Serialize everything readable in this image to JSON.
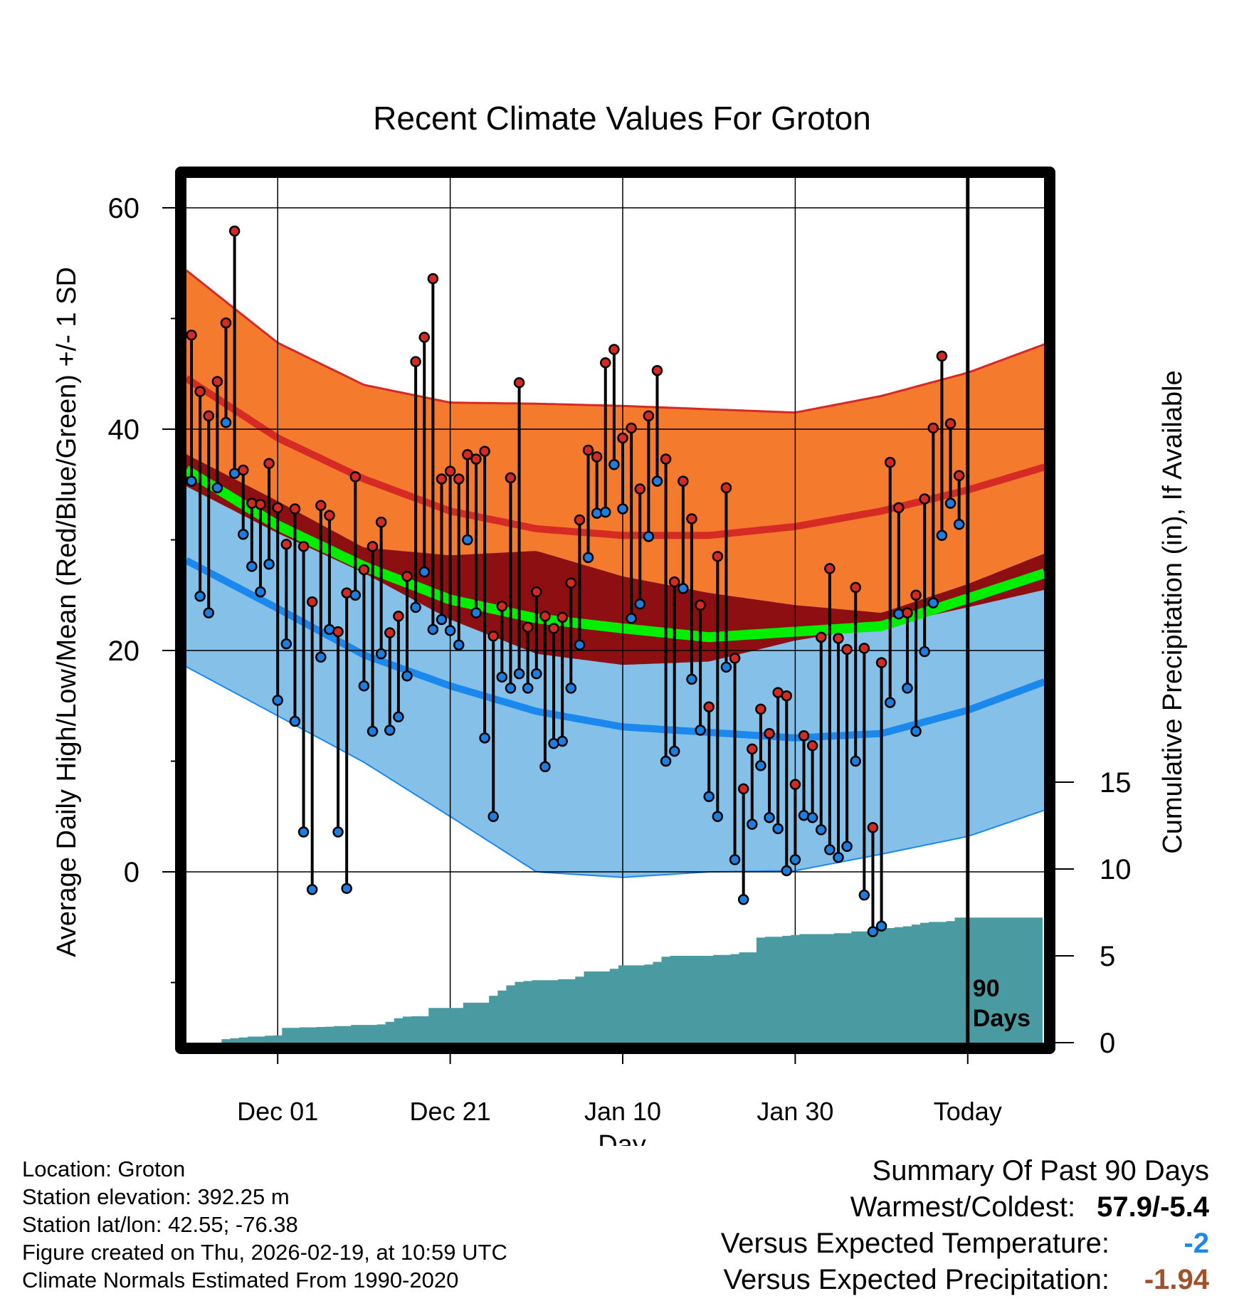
{
  "chart_data": {
    "type": "line",
    "title": "Recent Climate Values For Groton",
    "xlabel": "Day",
    "ylabel": "Average Daily High/Low/Mean (Red/Blue/Green) +/- 1 SD",
    "y2label": "Cumulative Precipitation (in), If Available",
    "ylim": [
      -15,
      65
    ],
    "y2lim": [
      0,
      30
    ],
    "x_ticks": [
      {
        "day": 10,
        "label": "Dec 01"
      },
      {
        "day": 30,
        "label": "Dec 21"
      },
      {
        "day": 50,
        "label": "Jan 10"
      },
      {
        "day": 70,
        "label": "Jan 30"
      },
      {
        "day": 90,
        "label": "Today"
      }
    ],
    "y_ticks": [
      "0",
      "20",
      "40",
      "60"
    ],
    "y2_ticks": [
      "0",
      "5",
      "10",
      "15"
    ],
    "window_label": [
      "90",
      "Days"
    ],
    "colors": {
      "high_band": "#f47a2d",
      "high_mean": "#d62a25",
      "low_band": "#84c0e8",
      "low_mean": "#1b88ee",
      "mean_band": "#8e0f12",
      "mean_line": "#00ee00",
      "precip": "#4a9aa2",
      "high_dot": "#d42a23",
      "low_dot": "#1c7fe0"
    },
    "normals": {
      "days": [
        -1,
        10,
        20,
        30,
        40,
        50,
        60,
        70,
        80,
        90,
        99
      ],
      "high_mean": [
        44.8,
        39.2,
        35.5,
        32.6,
        31.0,
        30.4,
        30.4,
        31.2,
        32.6,
        34.5,
        36.6
      ],
      "high_sd": [
        9.8,
        8.6,
        8.5,
        9.8,
        11.3,
        11.7,
        11.4,
        10.3,
        10.4,
        10.6,
        11.1
      ],
      "low_mean": [
        28.3,
        23.8,
        19.6,
        16.8,
        14.5,
        13.1,
        12.6,
        12.1,
        12.5,
        14.6,
        17.2
      ],
      "low_sd": [
        9.6,
        9.7,
        9.7,
        11.8,
        14.5,
        13.6,
        12.6,
        12.0,
        10.9,
        11.4,
        11.6
      ],
      "mean": [
        36.5,
        31.3,
        27.6,
        24.6,
        22.9,
        22.0,
        21.2,
        21.7,
        22.2,
        24.7,
        27.0
      ]
    },
    "series": [
      {
        "name": "Daily High",
        "values": [
          48.5,
          43.4,
          41.2,
          44.3,
          49.6,
          57.9,
          36.3,
          33.3,
          33.2,
          36.9,
          32.9,
          29.6,
          32.8,
          29.4,
          24.4,
          33.1,
          32.2,
          21.7,
          25.2,
          35.7,
          27.3,
          29.4,
          31.6,
          21.6,
          23.1,
          26.7,
          46.1,
          48.3,
          53.6,
          35.5,
          36.2,
          35.5,
          37.7,
          37.3,
          38.0,
          21.3,
          24.0,
          35.6,
          44.2,
          22.1,
          25.3,
          23.1,
          22.0,
          23.0,
          26.1,
          31.8,
          38.1,
          37.5,
          46.0,
          47.2,
          39.2,
          40.1,
          34.6,
          41.2,
          45.3,
          37.3,
          26.2,
          35.3,
          31.9,
          24.1,
          14.9,
          28.5,
          34.7,
          19.3,
          7.5,
          11.1,
          14.7,
          12.5,
          16.2,
          15.9,
          7.9,
          12.3,
          11.4,
          21.2,
          27.4,
          21.1,
          20.1,
          25.7,
          20.2,
          4.0,
          18.9,
          37.0,
          32.9,
          23.4,
          25.0,
          33.7,
          40.1,
          46.6,
          40.5,
          35.8
        ]
      },
      {
        "name": "Daily Low",
        "values": [
          35.3,
          24.9,
          23.4,
          34.7,
          40.6,
          36.0,
          30.5,
          27.6,
          25.3,
          27.8,
          15.5,
          20.6,
          13.6,
          3.6,
          -1.6,
          19.4,
          21.9,
          3.6,
          -1.5,
          25.0,
          16.8,
          12.7,
          19.7,
          12.8,
          14.0,
          17.7,
          23.9,
          27.1,
          21.9,
          22.8,
          21.8,
          20.5,
          30.0,
          23.4,
          12.1,
          5.0,
          17.6,
          16.6,
          17.9,
          16.6,
          17.9,
          9.5,
          11.6,
          11.8,
          16.6,
          20.5,
          28.4,
          32.4,
          32.5,
          36.8,
          32.8,
          22.9,
          24.2,
          30.3,
          35.3,
          10.0,
          10.9,
          25.6,
          17.4,
          12.8,
          6.8,
          5.0,
          18.5,
          1.1,
          -2.5,
          4.3,
          9.6,
          4.9,
          3.9,
          0.1,
          1.1,
          5.1,
          4.9,
          3.8,
          2.0,
          1.3,
          2.3,
          10.0,
          -2.1,
          -5.4,
          -4.9,
          15.3,
          23.3,
          16.6,
          12.7,
          19.9,
          24.3,
          30.4,
          33.3,
          31.4
        ]
      },
      {
        "name": "Cumulative Precipitation",
        "values": [
          0.0,
          0.0,
          0.0,
          0.0,
          0.2,
          0.25,
          0.3,
          0.35,
          0.35,
          0.4,
          0.42,
          0.85,
          0.85,
          0.88,
          0.88,
          0.9,
          0.92,
          0.95,
          0.95,
          1.02,
          1.02,
          1.02,
          1.05,
          1.2,
          1.4,
          1.5,
          1.52,
          1.52,
          2.0,
          2.0,
          2.0,
          2.0,
          2.3,
          2.3,
          2.3,
          2.7,
          3.0,
          3.3,
          3.5,
          3.55,
          3.6,
          3.6,
          3.6,
          3.65,
          3.65,
          3.8,
          4.1,
          4.1,
          4.1,
          4.25,
          4.45,
          4.45,
          4.45,
          4.5,
          4.65,
          4.95,
          5.0,
          5.0,
          5.0,
          5.0,
          5.0,
          5.05,
          5.05,
          5.1,
          5.2,
          5.2,
          6.05,
          6.1,
          6.1,
          6.15,
          6.2,
          6.25,
          6.25,
          6.25,
          6.25,
          6.3,
          6.3,
          6.4,
          6.4,
          6.5,
          6.55,
          6.6,
          6.65,
          6.7,
          6.8,
          6.9,
          6.95,
          6.95,
          7.0,
          7.2
        ]
      }
    ]
  },
  "info": {
    "location": "Location: Groton",
    "elevation": "Station elevation: 392.25 m",
    "latlon": "Station lat/lon: 42.55; -76.38",
    "created": "Figure created on Thu, 2026-02-19, at 10:59 UTC",
    "normals": "Climate Normals Estimated From 1990-2020"
  },
  "summary": {
    "title": "Summary Of Past 90 Days",
    "warm_cold_label": "Warmest/Coldest:",
    "warm_cold_value": "57.9/-5.4",
    "temp_label": "Versus Expected Temperature:",
    "temp_value": "-2",
    "temp_color": "#1b88ee",
    "precip_label": "Versus Expected Precipitation:",
    "precip_value": "-1.94",
    "precip_color": "#a0522d"
  }
}
